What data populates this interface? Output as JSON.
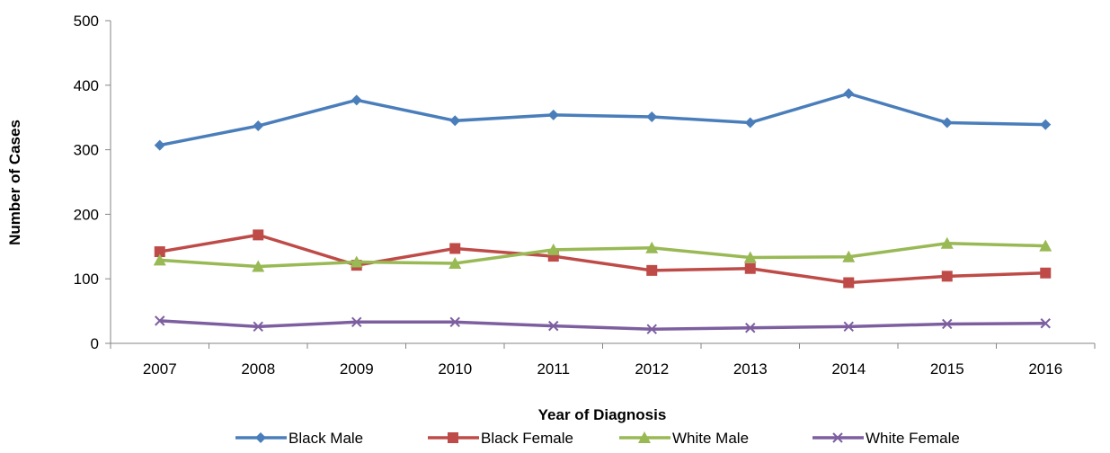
{
  "chart_data": {
    "type": "line",
    "title": "",
    "xlabel": "Year of Diagnosis",
    "ylabel": "Number of Cases",
    "ylim": [
      0,
      500
    ],
    "yticks": [
      0,
      100,
      200,
      300,
      400,
      500
    ],
    "categories": [
      "2007",
      "2008",
      "2009",
      "2010",
      "2011",
      "2012",
      "2013",
      "2014",
      "2015",
      "2016"
    ],
    "grid": false,
    "legend_position": "bottom",
    "series": [
      {
        "name": "Black Male",
        "color": "#4A7EBB",
        "marker": "diamond",
        "values": [
          307,
          337,
          377,
          345,
          354,
          351,
          342,
          387,
          342,
          339
        ]
      },
      {
        "name": "Black Female",
        "color": "#BE4B48",
        "marker": "square",
        "values": [
          142,
          168,
          121,
          147,
          135,
          113,
          116,
          94,
          104,
          109
        ]
      },
      {
        "name": "White Male",
        "color": "#98B954",
        "marker": "triangle",
        "values": [
          129,
          119,
          126,
          124,
          145,
          148,
          133,
          134,
          155,
          151
        ]
      },
      {
        "name": "White Female",
        "color": "#7D5FA0",
        "marker": "x",
        "values": [
          35,
          26,
          33,
          33,
          27,
          22,
          24,
          26,
          30,
          31
        ]
      }
    ]
  }
}
